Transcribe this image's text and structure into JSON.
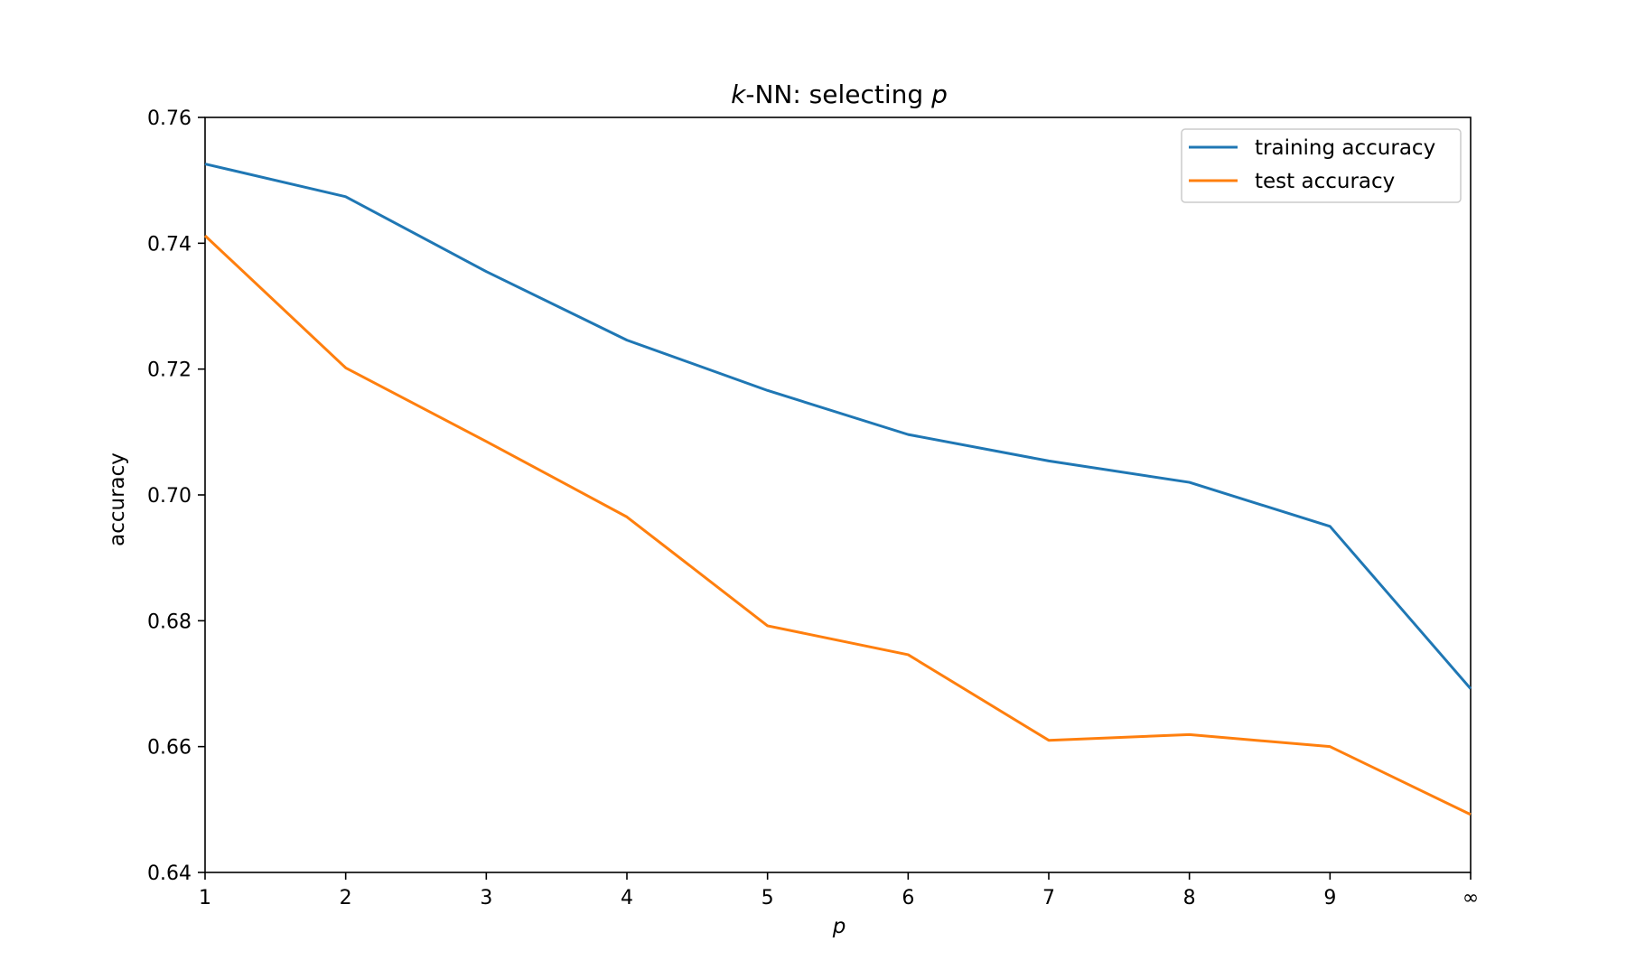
{
  "chart_data": {
    "type": "line",
    "title": {
      "italic_prefix": "k",
      "middle": "-NN: selecting ",
      "italic_suffix": "p"
    },
    "xlabel": "p",
    "ylabel": "accuracy",
    "x_categories": [
      "1",
      "2",
      "3",
      "4",
      "5",
      "6",
      "7",
      "8",
      "9",
      "∞"
    ],
    "ylim": [
      0.64,
      0.76
    ],
    "yticks": [
      "0.64",
      "0.66",
      "0.68",
      "0.70",
      "0.72",
      "0.74",
      "0.76"
    ],
    "grid": false,
    "legend_position": "top-right",
    "series": [
      {
        "name": "training accuracy",
        "color": "#1f77b4",
        "values": [
          0.7526,
          0.7474,
          0.7355,
          0.7246,
          0.7166,
          0.7096,
          0.7054,
          0.702,
          0.695,
          0.6692
        ]
      },
      {
        "name": "test accuracy",
        "color": "#ff7f0e",
        "values": [
          0.7412,
          0.7202,
          0.7085,
          0.6965,
          0.6792,
          0.6746,
          0.661,
          0.6619,
          0.66,
          0.6492
        ]
      }
    ]
  }
}
